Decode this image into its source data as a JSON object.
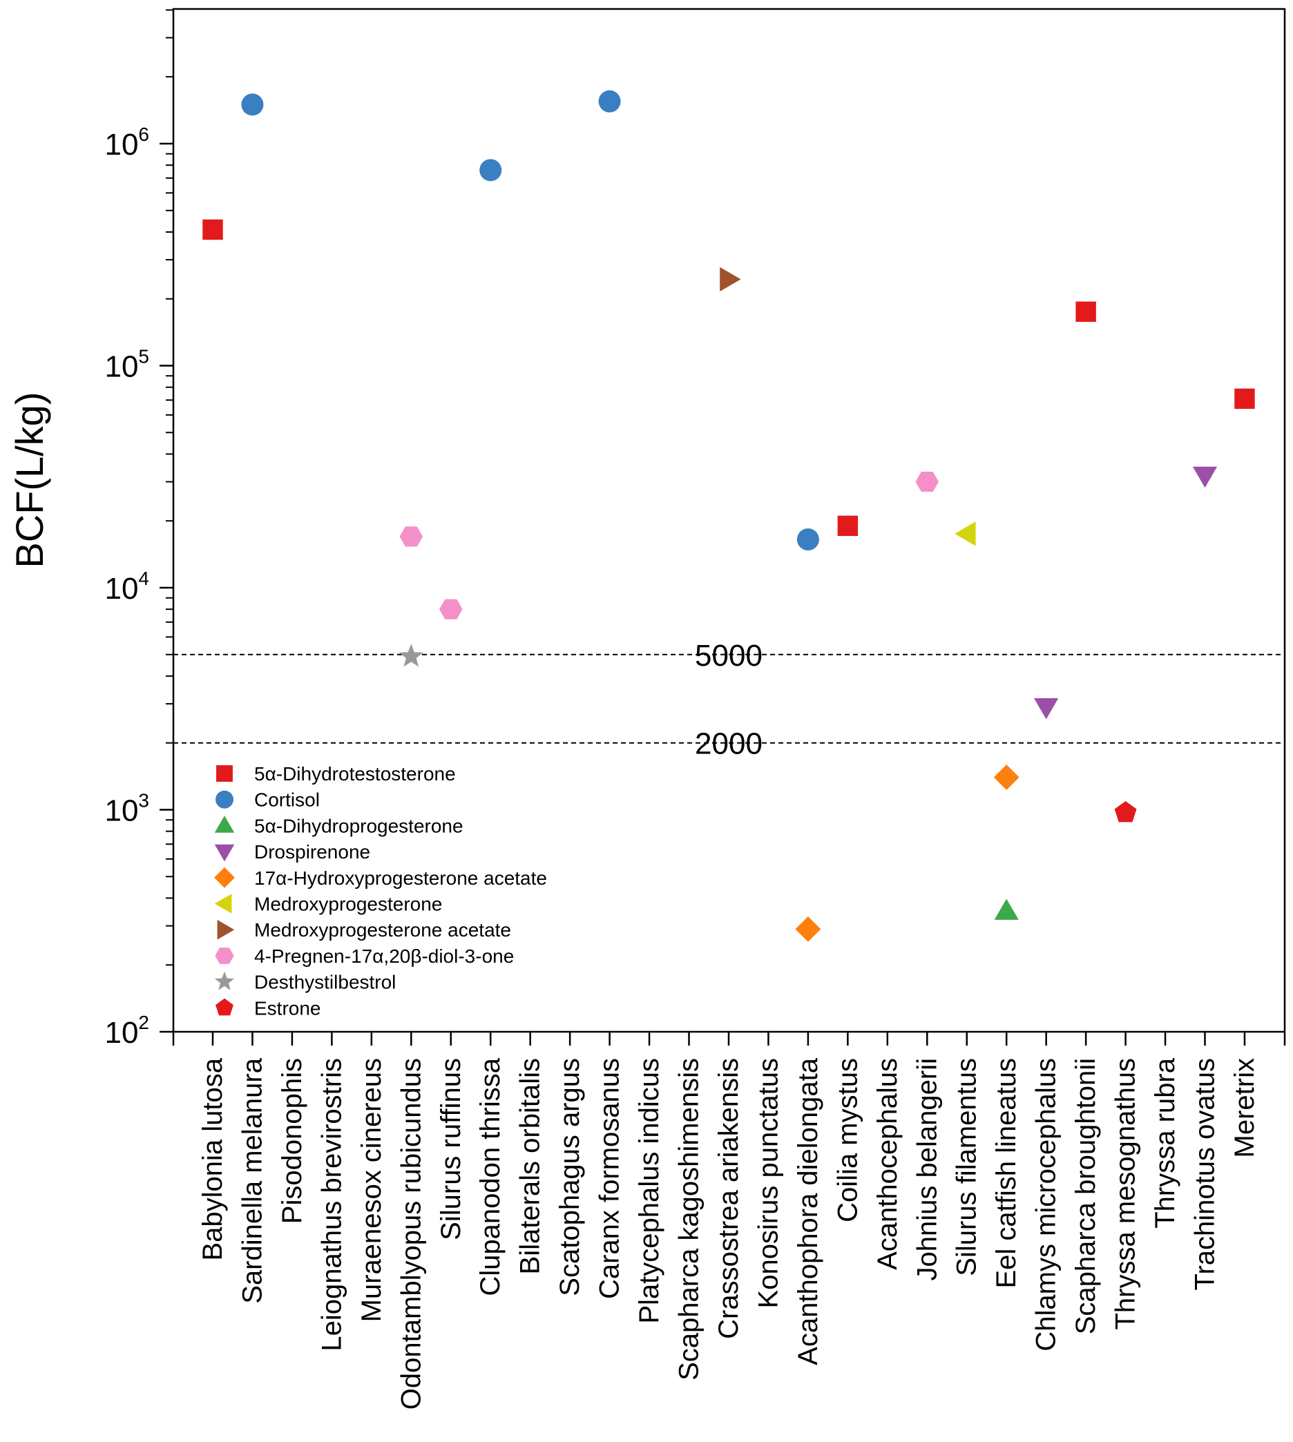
{
  "chart_data": {
    "type": "scatter",
    "title": "",
    "xlabel": "",
    "ylabel": "BCF(L/kg)",
    "yscale": "log",
    "ylim": [
      100,
      5000000
    ],
    "y_ticks": [
      {
        "value": 100,
        "base": "10",
        "exp": "2"
      },
      {
        "value": 1000,
        "base": "10",
        "exp": "3"
      },
      {
        "value": 10000,
        "base": "10",
        "exp": "4"
      },
      {
        "value": 100000,
        "base": "10",
        "exp": "5"
      },
      {
        "value": 1000000,
        "base": "10",
        "exp": "6"
      }
    ],
    "categories": [
      "Babylonia lutosa",
      "Sardinella melanura",
      "Pisodonophis",
      "Leiognathus brevirostris",
      "Muraenesox cinereus",
      "Odontamblyopus rubicundus",
      "Silurus ruffinus",
      "Clupanodon thrissa",
      "Bilaterals orbitalis",
      "Scatophagus argus",
      "Caranx formosanus",
      "Platycephalus indicus",
      "Scapharca kagoshimensis",
      "Crassostrea ariakensis",
      "Konosirus punctatus",
      "Acanthophora dielongata",
      "Coilia mystus",
      "Acanthocephalus",
      "Johnius belangerii",
      "Silurus filamentus",
      "Eel catfish lineatus",
      "Chlamys microcephalus",
      "Scapharca broughtonii",
      "Thryssa mesognathus",
      "Thryssa rubra",
      "Trachinotus ovatus",
      "Meretrix"
    ],
    "reference_lines": [
      {
        "value": 5000,
        "label": "5000"
      },
      {
        "value": 2000,
        "label": "2000"
      }
    ],
    "legend_position": "bottom-left",
    "series": [
      {
        "name": "5α-Dihydrotestosterone",
        "marker": "square",
        "color": "#e31a1c",
        "points": [
          {
            "x": "Babylonia lutosa",
            "y": 410000
          },
          {
            "x": "Coilia mystus",
            "y": 19000
          },
          {
            "x": "Scapharca broughtonii",
            "y": 175000
          },
          {
            "x": "Meretrix",
            "y": 71000
          }
        ]
      },
      {
        "name": "Cortisol",
        "marker": "circle",
        "color": "#3a7fc1",
        "points": [
          {
            "x": "Sardinella melanura",
            "y": 1500000
          },
          {
            "x": "Clupanodon thrissa",
            "y": 760000
          },
          {
            "x": "Caranx formosanus",
            "y": 1550000
          },
          {
            "x": "Acanthophora dielongata",
            "y": 16500
          }
        ]
      },
      {
        "name": "5α-Dihydroprogesterone",
        "marker": "triangle-up",
        "color": "#3da84a",
        "points": [
          {
            "x": "Eel catfish lineatus",
            "y": 350
          }
        ]
      },
      {
        "name": "Drospirenone",
        "marker": "triangle-down",
        "color": "#9b4fa8",
        "points": [
          {
            "x": "Chlamys microcephalus",
            "y": 2900
          },
          {
            "x": "Trachinotus ovatus",
            "y": 32000
          }
        ]
      },
      {
        "name": "17α-Hydroxyprogesterone acetate",
        "marker": "diamond",
        "color": "#ff7f0e",
        "points": [
          {
            "x": "Acanthophora dielongata",
            "y": 290
          },
          {
            "x": "Eel catfish lineatus",
            "y": 1400
          }
        ]
      },
      {
        "name": "Medroxyprogesterone",
        "marker": "triangle-left",
        "color": "#d4d40e",
        "points": [
          {
            "x": "Silurus filamentus",
            "y": 17500
          }
        ]
      },
      {
        "name": "Medroxyprogesterone acetate",
        "marker": "triangle-right",
        "color": "#a0522d",
        "points": [
          {
            "x": "Crassostrea ariakensis",
            "y": 245000
          }
        ]
      },
      {
        "name": "4-Pregnen-17α,20β-diol-3-one",
        "marker": "hexagon",
        "color": "#f48fc8",
        "points": [
          {
            "x": "Odontamblyopus rubicundus",
            "y": 17000
          },
          {
            "x": "Silurus ruffinus",
            "y": 8000
          },
          {
            "x": "Johnius belangerii",
            "y": 30000
          }
        ]
      },
      {
        "name": "Desthystilbestrol",
        "marker": "star",
        "color": "#999999",
        "points": [
          {
            "x": "Odontamblyopus rubicundus",
            "y": 4900
          }
        ]
      },
      {
        "name": "Estrone",
        "marker": "pentagon",
        "color": "#e31a1c",
        "points": [
          {
            "x": "Thryssa mesognathus",
            "y": 970
          }
        ]
      }
    ]
  }
}
